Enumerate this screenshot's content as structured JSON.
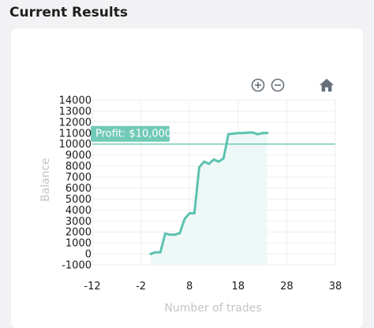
{
  "page": {
    "title": "Current Results"
  },
  "toolbar": {
    "zoom_in": "zoom-in-icon",
    "zoom_out": "zoom-out-icon",
    "reset": "home-icon"
  },
  "colors": {
    "series": "#5cc2b0",
    "area_fill": "#eef8f6",
    "annotation_bg": "#70cab7",
    "threshold_line": "#5cc2b0",
    "grid": "#eeeeee",
    "icon": "#666f7a"
  },
  "chart_data": {
    "type": "area",
    "title": "",
    "xlabel": "Number of trades",
    "ylabel": "Balance",
    "xlim": [
      -12,
      38
    ],
    "ylim": [
      -1000,
      14000
    ],
    "x_ticks": [
      "-12",
      "-2",
      "8",
      "18",
      "28",
      "38"
    ],
    "y_ticks": [
      "-1000",
      "0",
      "1000",
      "2000",
      "3000",
      "4000",
      "5000",
      "6000",
      "7000",
      "8000",
      "9000",
      "10000",
      "11000",
      "12000",
      "13000",
      "14000"
    ],
    "grid": true,
    "annotation": {
      "label": "Profit: $10,000",
      "y": 10000
    },
    "series": [
      {
        "x": [
          0,
          1,
          2,
          3,
          4,
          5,
          6,
          7,
          8,
          9,
          10,
          11,
          12,
          13,
          14,
          15,
          16,
          17,
          18,
          19,
          20,
          21,
          22,
          23,
          24
        ],
        "values": [
          0,
          150,
          150,
          1850,
          1750,
          1750,
          1900,
          3200,
          3700,
          3700,
          7900,
          8400,
          8200,
          8600,
          8400,
          8700,
          10900,
          10950,
          11000,
          11000,
          11050,
          11050,
          10900,
          11000,
          11000
        ]
      }
    ],
    "area_end_x": 24
  }
}
